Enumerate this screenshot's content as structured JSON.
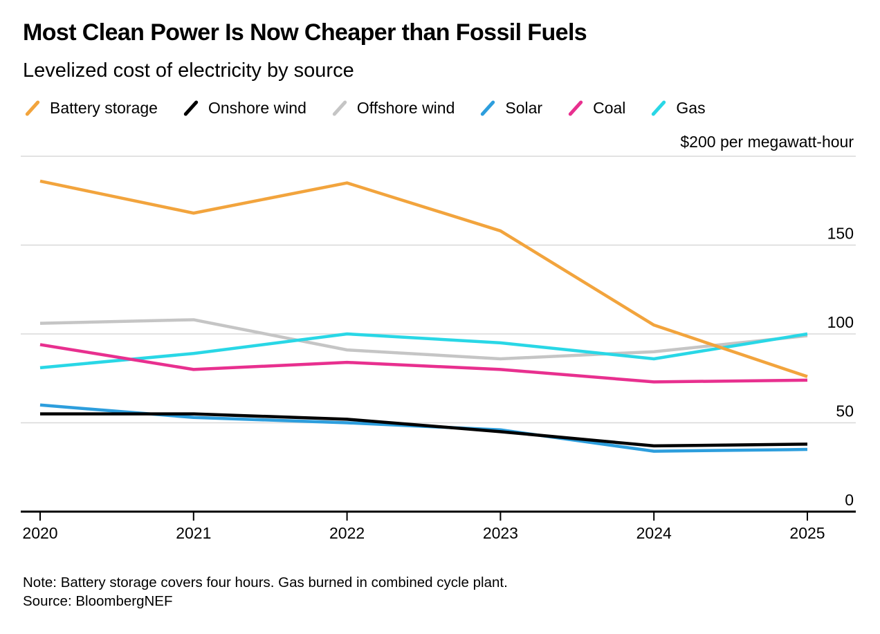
{
  "header": {
    "title": "Most Clean Power Is Now Cheaper than Fossil Fuels",
    "subtitle": "Levelized cost of electricity by source"
  },
  "footer": {
    "note": "Note: Battery storage covers four hours. Gas burned in combined cycle plant.",
    "source": "Source: BloombergNEF"
  },
  "chart_data": {
    "type": "line",
    "title": "Most Clean Power Is Now Cheaper than Fossil Fuels",
    "subtitle": "Levelized cost of electricity by source",
    "unit_label": "$200 per megawatt-hour",
    "x": [
      "2020",
      "2021",
      "2022",
      "2023",
      "2024",
      "2025"
    ],
    "ylim": [
      0,
      200
    ],
    "yticks": [
      "0",
      "50",
      "100",
      "150"
    ],
    "ytick_values": [
      0,
      50,
      100,
      150
    ],
    "grid": true,
    "legend_position": "top",
    "series": [
      {
        "name": "Battery storage",
        "color": "#F2A43D",
        "values": [
          186,
          168,
          185,
          158,
          105,
          76
        ]
      },
      {
        "name": "Onshore wind",
        "color": "#000000",
        "values": [
          55,
          55,
          52,
          45,
          37,
          38
        ]
      },
      {
        "name": "Offshore wind",
        "color": "#C5C5C5",
        "values": [
          106,
          108,
          91,
          86,
          90,
          99
        ]
      },
      {
        "name": "Solar",
        "color": "#2D9EDD",
        "values": [
          60,
          53,
          50,
          46,
          34,
          35
        ]
      },
      {
        "name": "Coal",
        "color": "#E8308F",
        "values": [
          94,
          80,
          84,
          80,
          73,
          74
        ]
      },
      {
        "name": "Gas",
        "color": "#29D7E6",
        "values": [
          81,
          89,
          100,
          95,
          86,
          100
        ]
      }
    ],
    "grid_color": "#D8D8D8",
    "axis_color": "#000000"
  }
}
